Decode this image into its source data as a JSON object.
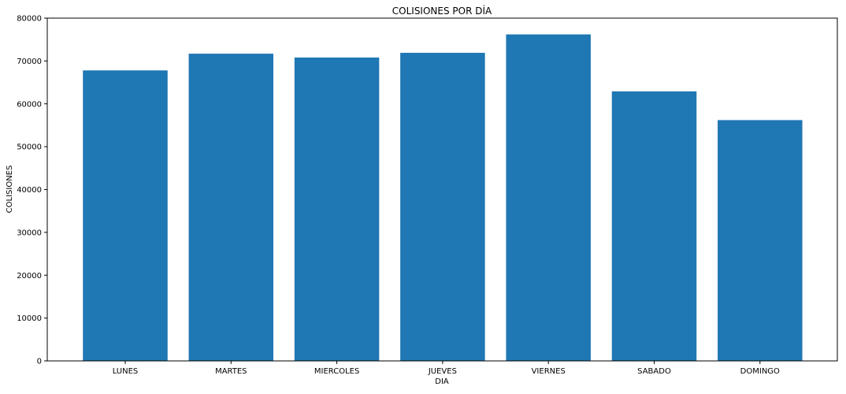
{
  "chart_data": {
    "type": "bar",
    "title": "COLISIONES POR DÍA",
    "xlabel": "DIA",
    "ylabel": "COLISIONES",
    "categories": [
      "LUNES",
      "MARTES",
      "MIERCOLES",
      "JUEVES",
      "VIERNES",
      "SABADO",
      "DOMINGO"
    ],
    "values": [
      67800,
      71700,
      70800,
      71900,
      76200,
      62900,
      56200
    ],
    "ylim": [
      0,
      80000
    ],
    "yticks": [
      0,
      10000,
      20000,
      30000,
      40000,
      50000,
      60000,
      70000,
      80000
    ],
    "bar_color": "#1f77b4",
    "grid": false,
    "legend": "none"
  }
}
